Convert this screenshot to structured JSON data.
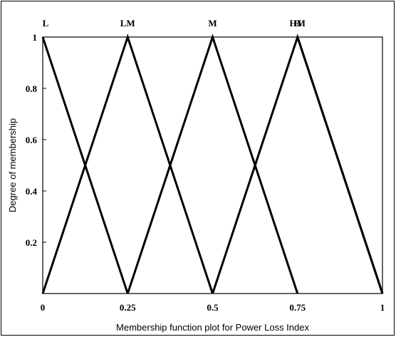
{
  "chart_data": {
    "type": "line",
    "title": "",
    "xlabel": "Membership function plot for Power Loss Index",
    "ylabel": "Degree of membership",
    "xlim": [
      0,
      1
    ],
    "ylim": [
      0,
      1
    ],
    "xticks": [
      "0",
      "0.25",
      "0.5",
      "0.75",
      "1"
    ],
    "yticks": [
      "0.2",
      "0.4",
      "0.6",
      "0.8",
      "1"
    ],
    "grid": false,
    "series": [
      {
        "name": "L",
        "x": [
          0,
          0.25
        ],
        "y": [
          1,
          0
        ]
      },
      {
        "name": "LM",
        "x": [
          0,
          0.25,
          0.5
        ],
        "y": [
          0,
          1,
          0
        ]
      },
      {
        "name": "M",
        "x": [
          0.25,
          0.5,
          0.75
        ],
        "y": [
          0,
          1,
          0
        ]
      },
      {
        "name": "HM",
        "x": [
          0.5,
          0.75,
          1
        ],
        "y": [
          0,
          1,
          0
        ]
      },
      {
        "name": "H",
        "x": [
          0.75,
          1
        ],
        "y": [
          1,
          0
        ]
      }
    ],
    "line_color": "#000000"
  }
}
